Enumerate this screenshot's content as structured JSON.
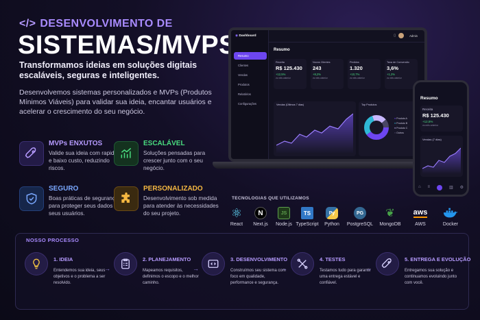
{
  "header": {
    "code_glyph": "</>",
    "subtitle": "DESENVOLVIMENTO DE",
    "title": "SISTEMAS/MVPS",
    "tagline": "Transformamos ideias em soluções digitais escaláveis, seguras e inteligentes.",
    "description": "Desenvolvemos sistemas personalizados e MVPs (Produtos Mínimos Viáveis) para validar sua ideia, encantar usuários e acelerar o crescimento do seu negócio."
  },
  "features": [
    {
      "title": "MVPs ENXUTOS",
      "desc": "Valide sua ideia com rapidez e baixo custo, reduzindo riscos.",
      "color": "#a98bff",
      "icon": "rocket-icon"
    },
    {
      "title": "ESCALÁVEL",
      "desc": "Soluções pensadas para crescer junto com o seu negócio.",
      "color": "#4ade80",
      "icon": "growth-chart-icon"
    },
    {
      "title": "SEGURO",
      "desc": "Boas práticas de segurança para proteger seus dados e seus usuários.",
      "color": "#7aa8ff",
      "icon": "shield-icon"
    },
    {
      "title": "PERSONALIZADO",
      "desc": "Desenvolvimento sob medida para atender às necessidades do seu projeto.",
      "color": "#f5b841",
      "icon": "puzzle-icon"
    }
  ],
  "dashboard": {
    "app_name": "Dashboard",
    "user": "Admin",
    "nav": [
      "Resumo",
      "Clientes",
      "Vendas",
      "Produtos",
      "Relatórios",
      "Configurações"
    ],
    "section": "Resumo",
    "kpis": [
      {
        "label": "Receita",
        "value": "R$ 125.430",
        "change": "+12,5%",
        "sub": "vs mês anterior"
      },
      {
        "label": "Novos Clientes",
        "value": "243",
        "change": "+8,2%",
        "sub": "vs mês anterior"
      },
      {
        "label": "Pedidos",
        "value": "1.320",
        "change": "+10,7%",
        "sub": "vs mês anterior"
      },
      {
        "label": "Taxa de Conversão",
        "value": "3,6%",
        "change": "+1,2%",
        "sub": "vs mês anterior"
      }
    ],
    "sales_chart_title": "Vendas (Últimos 7 dias)",
    "products_chart_title": "Top Produtos",
    "products_legend": [
      "Produto A",
      "Produto B",
      "Produto C",
      "Outros"
    ]
  },
  "phone": {
    "section": "Resumo",
    "kpi_label": "Receita",
    "kpi_value": "R$ 125.430",
    "kpi_change": "+12,5%",
    "kpi_sub": "vs mês anterior",
    "chart_title": "Vendas (7 dias)"
  },
  "tech": {
    "title": "TECNOLOGIAS QUE UTILIZAMOS",
    "items": [
      {
        "name": "React",
        "glyph": "⚛",
        "color": "#61dafb"
      },
      {
        "name": "Next.js",
        "glyph": "N",
        "color": "#ffffff"
      },
      {
        "name": "Node.js",
        "glyph": "JS",
        "color": "#5fa04e"
      },
      {
        "name": "TypeScript",
        "glyph": "TS",
        "color": "#3178c6"
      },
      {
        "name": "Python",
        "glyph": "Py",
        "color": "#f7c948"
      },
      {
        "name": "PostgreSQL",
        "glyph": "PG",
        "color": "#5b8fd6"
      },
      {
        "name": "MongoDB",
        "glyph": "❦",
        "color": "#47a248"
      },
      {
        "name": "AWS",
        "glyph": "aws",
        "color": "#ff9900"
      },
      {
        "name": "Docker",
        "glyph": "🐳",
        "color": "#2496ed"
      }
    ]
  },
  "process": {
    "title": "NOSSO PROCESSO",
    "steps": [
      {
        "title": "1. IDEIA",
        "desc": "Entendemos sua ideia, seus objetivos e o problema a ser resolvido.",
        "icon": "lightbulb-icon"
      },
      {
        "title": "2. PLANEJAMENTO",
        "desc": "Mapeamos requisitos, definimos o escopo e o melhor caminho.",
        "icon": "checklist-icon"
      },
      {
        "title": "3. DESENVOLVIMENTO",
        "desc": "Construímos seu sistema com foco em qualidade, performance e segurança.",
        "icon": "code-icon"
      },
      {
        "title": "4. TESTES",
        "desc": "Testamos tudo para garantir uma entrega estável e confiável.",
        "icon": "tools-icon"
      },
      {
        "title": "5. ENTREGA E EVOLUÇÃO",
        "desc": "Entregamos sua solução e continuamos evoluindo junto com você.",
        "icon": "rocket-icon"
      }
    ]
  }
}
